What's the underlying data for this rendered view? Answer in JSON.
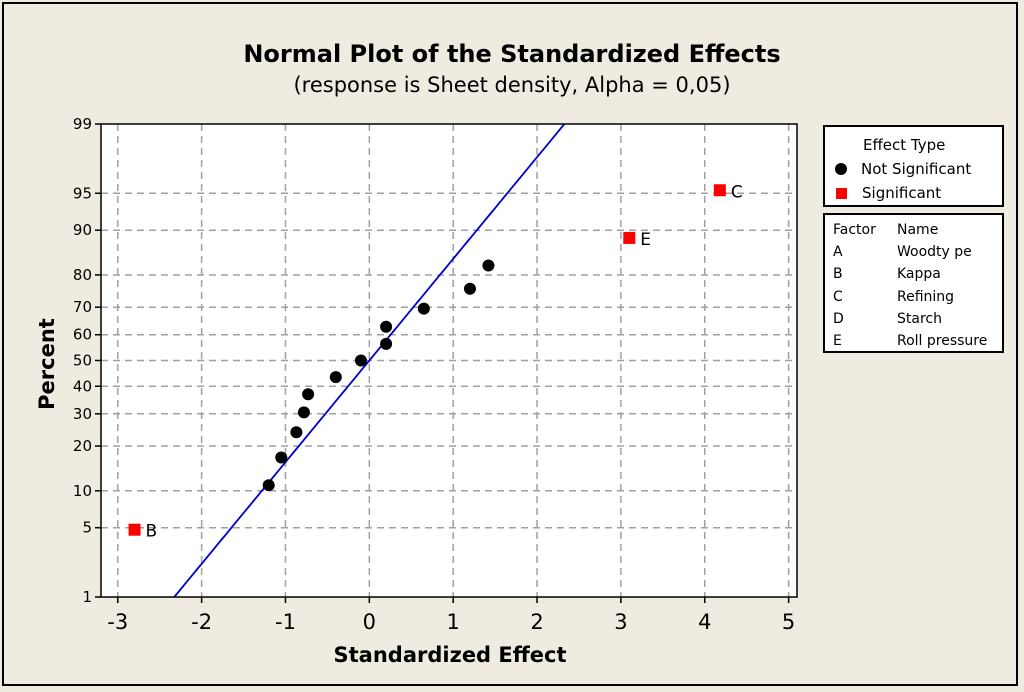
{
  "chart_data": {
    "type": "scatter",
    "title": "Normal Plot of the Standardized Effects",
    "subtitle": "(response is Sheet density, Alpha = 0,05)",
    "xlabel": "Standardized Effect",
    "ylabel": "Percent",
    "xlim": [
      -3.2,
      5.1
    ],
    "ylim": [
      1,
      99
    ],
    "y_scale": "normal-probability",
    "x_ticks": [
      -3,
      -2,
      -1,
      0,
      1,
      2,
      3,
      4,
      5
    ],
    "y_ticks": [
      1,
      5,
      10,
      20,
      30,
      40,
      50,
      60,
      70,
      80,
      90,
      95,
      99
    ],
    "grid": true,
    "reference_line": {
      "mean": 0.0,
      "sd": 1.0,
      "color": "#0000cc"
    },
    "series": [
      {
        "name": "Not Significant",
        "marker": "circle",
        "color": "#000000",
        "x": [
          -1.2,
          -1.05,
          -0.87,
          -0.78,
          -0.73,
          -0.4,
          -0.1,
          0.2,
          0.2,
          0.65,
          1.2,
          1.42
        ],
        "y": [
          11,
          17,
          24,
          30.5,
          37,
          43.5,
          50,
          56.5,
          63,
          69.5,
          76,
          82.5
        ]
      },
      {
        "name": "Significant",
        "marker": "square",
        "color": "#ff0000",
        "x": [
          -2.8,
          3.1,
          4.18
        ],
        "y": [
          4.8,
          88.6,
          95.3
        ],
        "labels": [
          "B",
          "E",
          "C"
        ]
      }
    ],
    "legend": {
      "title": "Effect Type",
      "position": "right",
      "entries": [
        "Not Significant",
        "Significant"
      ]
    },
    "factor_table": {
      "headers": [
        "Factor",
        "Name"
      ],
      "rows": [
        [
          "A",
          "Woodty pe"
        ],
        [
          "B",
          "Kappa"
        ],
        [
          "C",
          "Refining"
        ],
        [
          "D",
          "Starch"
        ],
        [
          "E",
          "Roll pressure"
        ]
      ]
    }
  }
}
